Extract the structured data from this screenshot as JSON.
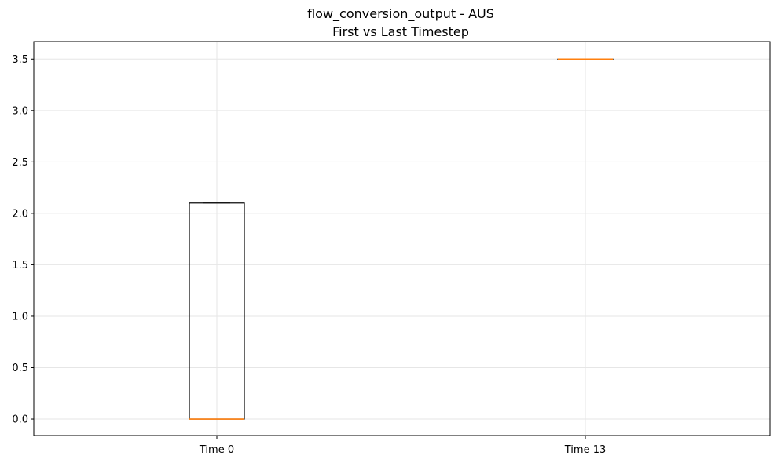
{
  "chart_data": {
    "type": "box",
    "title": "flow_conversion_output - AUS",
    "subtitle": "First vs Last Timestep",
    "xlabel": "",
    "ylabel": "",
    "categories": [
      "Time 0",
      "Time 13"
    ],
    "boxes": [
      {
        "category": "Time 0",
        "min": 0.0,
        "q1": 0.0,
        "median": 0.0,
        "q3": 2.1,
        "max": 2.1
      },
      {
        "category": "Time 13",
        "min": 3.5,
        "q1": 3.5,
        "median": 3.5,
        "q3": 3.5,
        "max": 3.5
      }
    ],
    "ylim": [
      -0.16,
      3.67
    ],
    "yticks": [
      0.0,
      0.5,
      1.0,
      1.5,
      2.0,
      2.5,
      3.0,
      3.5
    ],
    "ytick_labels": [
      "0.0",
      "0.5",
      "1.0",
      "1.5",
      "2.0",
      "2.5",
      "3.0",
      "3.5"
    ],
    "grid": true,
    "colors": {
      "box": "#000000",
      "median": "#ff7f0e",
      "grid": "#e6e6e6"
    }
  }
}
